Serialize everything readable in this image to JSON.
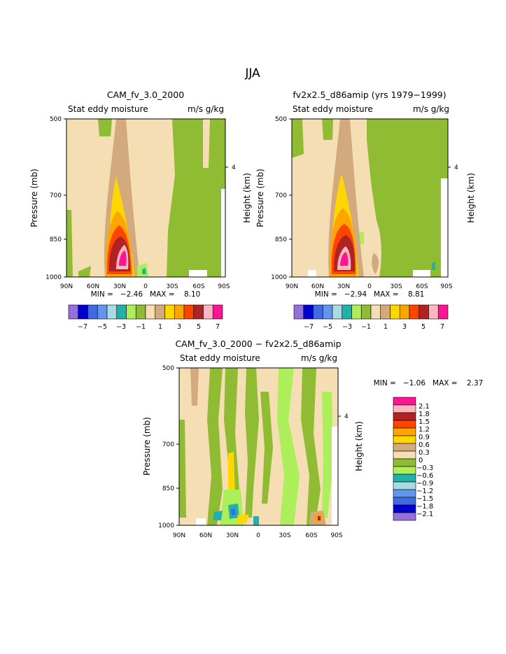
{
  "page_title": "JJA",
  "panels": [
    {
      "title": "CAM_fv_3.0_2000",
      "left_label": "Stat eddy moisture",
      "units": "m/s g/kg",
      "ylabel": "Pressure (mb)",
      "right_label": "Height (km)",
      "stats": "MIN =   -2.46   MAX =    8.10"
    },
    {
      "title": "fv2x2.5_d86amip (yrs 1979-1999)",
      "left_label": "Stat eddy moisture",
      "units": "m/s g/kg",
      "ylabel": "Pressure (mb)",
      "right_label": "Height (km)",
      "stats": "MIN =   -2.94   MAX =    8.81"
    },
    {
      "title": "CAM_fv_3.0_2000 - fv2x2.5_d86amip",
      "left_label": "Stat eddy moisture",
      "units": "m/s g/kg",
      "ylabel": "Pressure (mb)",
      "right_label": "Height (km)",
      "stats": "MIN =   -1.06   MAX =    2.37"
    }
  ],
  "colors": {
    "top_scale": [
      "#9370db",
      "#0000cd",
      "#4169e1",
      "#6495ed",
      "#a8dce0",
      "#20b2aa",
      "#adef5a",
      "#8fbc32",
      "#f5deb3",
      "#d2aa7d",
      "#ffd700",
      "#ffa500",
      "#ff4500",
      "#b22222",
      "#ffb6c1",
      "#ff1493"
    ],
    "diff_scale": [
      "#ff1493",
      "#ffb6c1",
      "#b22222",
      "#ff4500",
      "#ffa500",
      "#ffd700",
      "#d2aa7d",
      "#f5deb3",
      "#8fbc32",
      "#adef5a",
      "#20b2aa",
      "#a8dce0",
      "#6495ed",
      "#4169e1",
      "#0000cd",
      "#9370db"
    ]
  },
  "chart_data": [
    {
      "type": "heatmap",
      "title": "CAM_fv_3.0_2000",
      "xlabel": "",
      "ylabel": "Pressure (mb)",
      "x_ticks": [
        "90N",
        "60N",
        "30N",
        "0",
        "30S",
        "60S",
        "90S"
      ],
      "y_ticks": [
        500,
        700,
        850,
        1000
      ],
      "y2_ticks": [
        4
      ],
      "ylim": [
        1000,
        500
      ],
      "legend_ticks": [
        "-7",
        "-5",
        "-3",
        "-1",
        "1",
        "3",
        "5",
        "7"
      ],
      "levels": [
        -7,
        -6,
        -5,
        -4,
        -3,
        -2,
        -1,
        0,
        1,
        2,
        3,
        4,
        5,
        6,
        7
      ],
      "min": -2.46,
      "max": 8.1
    },
    {
      "type": "heatmap",
      "title": "fv2x2.5_d86amip (yrs 1979-1999)",
      "xlabel": "",
      "ylabel": "Pressure (mb)",
      "x_ticks": [
        "90N",
        "60N",
        "30N",
        "0",
        "30S",
        "60S",
        "90S"
      ],
      "y_ticks": [
        500,
        700,
        850,
        1000
      ],
      "y2_ticks": [
        4
      ],
      "ylim": [
        1000,
        500
      ],
      "legend_ticks": [
        "-7",
        "-5",
        "-3",
        "-1",
        "1",
        "3",
        "5",
        "7"
      ],
      "levels": [
        -7,
        -6,
        -5,
        -4,
        -3,
        -2,
        -1,
        0,
        1,
        2,
        3,
        4,
        5,
        6,
        7
      ],
      "min": -2.94,
      "max": 8.81
    },
    {
      "type": "heatmap",
      "title": "CAM_fv_3.0_2000 - fv2x2.5_d86amip",
      "xlabel": "",
      "ylabel": "Pressure (mb)",
      "x_ticks": [
        "90N",
        "60N",
        "30N",
        "0",
        "30S",
        "60S",
        "90S"
      ],
      "y_ticks": [
        500,
        700,
        850,
        1000
      ],
      "y2_ticks": [
        4
      ],
      "ylim": [
        1000,
        500
      ],
      "legend_ticks": [
        "2.1",
        "1.8",
        "1.5",
        "1.2",
        "0.9",
        "0.6",
        "0.3",
        "0",
        "-0.3",
        "-0.6",
        "-0.9",
        "-1.2",
        "-1.5",
        "-1.8",
        "-2.1"
      ],
      "min": -1.06,
      "max": 2.37
    }
  ]
}
